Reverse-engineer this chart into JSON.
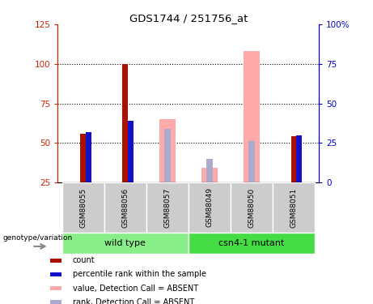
{
  "title": "GDS1744 / 251756_at",
  "samples": [
    "GSM88055",
    "GSM88056",
    "GSM88057",
    "GSM88049",
    "GSM88050",
    "GSM88051"
  ],
  "red_bars": [
    56,
    100,
    0,
    0,
    0,
    54
  ],
  "blue_bars": [
    57,
    64,
    0,
    0,
    0,
    55
  ],
  "pink_bars": [
    0,
    0,
    65,
    34,
    108,
    0
  ],
  "lightblue_bars": [
    0,
    0,
    59,
    40,
    51,
    0
  ],
  "ylim_left": [
    25,
    125
  ],
  "yticks_left": [
    25,
    50,
    75,
    100,
    125
  ],
  "yticks_right_vals": [
    0,
    25,
    50,
    75,
    100
  ],
  "yticks_right_labels": [
    "0",
    "25",
    "50",
    "75",
    "100%"
  ],
  "left_color": "#cc2200",
  "right_color": "#0000cc",
  "red_color": "#aa1100",
  "blue_color": "#1111cc",
  "pink_color": "#ffaaaa",
  "lightblue_color": "#aaaacc",
  "legend_labels": [
    "count",
    "percentile rank within the sample",
    "value, Detection Call = ABSENT",
    "rank, Detection Call = ABSENT"
  ],
  "legend_colors": [
    "#aa1100",
    "#1111cc",
    "#ffaaaa",
    "#aaaacc"
  ],
  "genotype_label": "genotype/variation",
  "wt_color": "#88ee88",
  "mut_color": "#44dd44",
  "gray_color": "#cccccc"
}
